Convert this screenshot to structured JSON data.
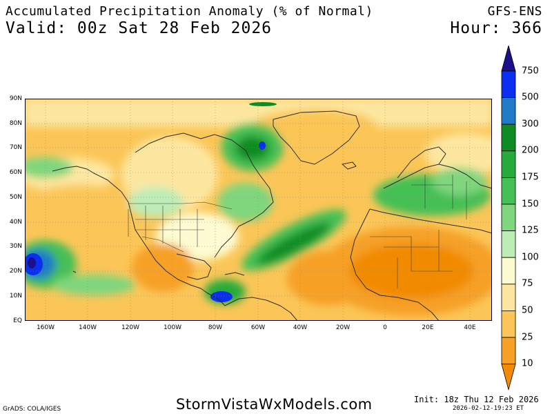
{
  "header": {
    "title": "Accumulated Precipitation Anomaly (% of Normal)",
    "valid": "Valid: 00z Sat 28 Feb 2026",
    "model": "GFS-ENS",
    "hour": "Hour: 366"
  },
  "map": {
    "lat_labels": [
      "90N",
      "80N",
      "70N",
      "60N",
      "50N",
      "40N",
      "30N",
      "20N",
      "10N",
      "EQ"
    ],
    "lon_labels": [
      "160W",
      "140W",
      "120W",
      "100W",
      "80W",
      "60W",
      "40W",
      "20W",
      "0",
      "20E",
      "40E"
    ]
  },
  "colorbar": {
    "levels": [
      "750",
      "500",
      "300",
      "200",
      "175",
      "150",
      "125",
      "100",
      "75",
      "50",
      "25",
      "10"
    ],
    "colors": [
      "#1b0f8a",
      "#0a2ff0",
      "#1f7ac8",
      "#0e8c24",
      "#27ab3b",
      "#45c055",
      "#7fd67d",
      "#bdecb6",
      "#fdfbd2",
      "#fde7a0",
      "#fbc657",
      "#f6a028",
      "#f28a06"
    ]
  },
  "footer": {
    "site": "StormVistaWxModels.com",
    "init": "Init: 18z Thu 12 Feb 2026",
    "timestamp": "2026-02-12-19:23 ET",
    "grads": "GrADS: COLA/IGES"
  }
}
